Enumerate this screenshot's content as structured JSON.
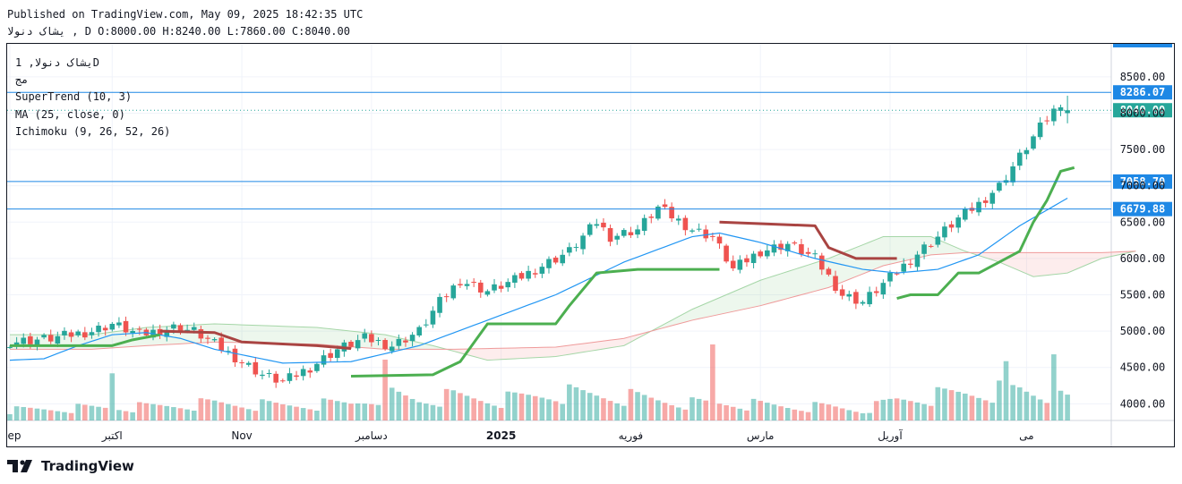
{
  "header": {
    "published": "Published on TradingView.com, May 09, 2025 18:42:35 UTC",
    "ohlc_line": "یشاک دنولا , D O:8000.00 H:8240.00 L:7860.00 C:8040.00"
  },
  "legend": {
    "symbol_line": "یشاک دنولا, 1D",
    "exchange": "مج",
    "indicators": [
      "SuperTrend (10, 3)",
      "MA (25, close, 0)",
      "Ichimoku (9, 26, 52, 26)"
    ]
  },
  "branding": {
    "logo_text": "TradingView"
  },
  "colors": {
    "up": "#26a69a",
    "down": "#ef5350",
    "ma": "#2196f3",
    "supertrend_up": "#4caf50",
    "supertrend_down": "#a94442",
    "hline": "#1e88e5",
    "last_price_tag": "#26a69a"
  },
  "chart_data": {
    "type": "candlestick",
    "title": "",
    "interval": "1D",
    "y_axis": {
      "ticks": [
        4000,
        4500,
        5000,
        5500,
        6000,
        6500,
        7000,
        7500,
        8000,
        8500
      ],
      "tick_labels": [
        "4000.00",
        "4500.00",
        "5000.00",
        "5500.00",
        "6000.00",
        "6500.00",
        "7000.00",
        "7500.00",
        "8000.00",
        "8500.00"
      ],
      "ylim": [
        3770,
        8880
      ]
    },
    "x_axis": {
      "tick_labels": [
        "ep",
        "اکتبر",
        "Nov",
        "دسامبر",
        "2025",
        "فوریه",
        "مارس",
        "آوریل",
        "می"
      ],
      "tick_candle_index": [
        0,
        15,
        34,
        53,
        72,
        91,
        110,
        129,
        149
      ],
      "candle_count": 156
    },
    "price_tags": [
      {
        "label": "8286.07",
        "value": 8286.07,
        "kind": "line"
      },
      {
        "label": "8040.00",
        "value": 8040,
        "kind": "last"
      },
      {
        "label": "7058.70",
        "value": 7058.7,
        "kind": "line"
      },
      {
        "label": "6679.88",
        "value": 6679.88,
        "kind": "line"
      }
    ],
    "last_ohlc": {
      "open": 8000,
      "high": 8240,
      "low": 7860,
      "close": 8040
    },
    "price_anchors": [
      [
        0,
        4850
      ],
      [
        6,
        4900
      ],
      [
        12,
        5000
      ],
      [
        15,
        5100
      ],
      [
        19,
        4950
      ],
      [
        24,
        5050
      ],
      [
        27,
        5000
      ],
      [
        32,
        4700
      ],
      [
        37,
        4400
      ],
      [
        40,
        4300
      ],
      [
        44,
        4500
      ],
      [
        48,
        4750
      ],
      [
        52,
        4900
      ],
      [
        56,
        4800
      ],
      [
        60,
        5000
      ],
      [
        63,
        5400
      ],
      [
        66,
        5700
      ],
      [
        70,
        5550
      ],
      [
        74,
        5700
      ],
      [
        78,
        5900
      ],
      [
        82,
        6100
      ],
      [
        86,
        6500
      ],
      [
        88,
        6300
      ],
      [
        92,
        6400
      ],
      [
        95,
        6700
      ],
      [
        100,
        6400
      ],
      [
        103,
        6300
      ],
      [
        106,
        5850
      ],
      [
        110,
        6100
      ],
      [
        114,
        6200
      ],
      [
        118,
        6000
      ],
      [
        122,
        5500
      ],
      [
        125,
        5400
      ],
      [
        128,
        5650
      ],
      [
        131,
        5900
      ],
      [
        134,
        6150
      ],
      [
        136,
        6300
      ],
      [
        139,
        6550
      ],
      [
        142,
        6750
      ],
      [
        145,
        7000
      ],
      [
        148,
        7400
      ],
      [
        151,
        7800
      ],
      [
        154,
        8150
      ],
      [
        155,
        8040
      ]
    ],
    "ma25_anchors": [
      [
        0,
        4600
      ],
      [
        5,
        4620
      ],
      [
        10,
        4800
      ],
      [
        15,
        4950
      ],
      [
        20,
        4980
      ],
      [
        25,
        4900
      ],
      [
        30,
        4750
      ],
      [
        40,
        4560
      ],
      [
        50,
        4580
      ],
      [
        60,
        4800
      ],
      [
        70,
        5150
      ],
      [
        80,
        5500
      ],
      [
        90,
        5950
      ],
      [
        100,
        6300
      ],
      [
        104,
        6350
      ],
      [
        110,
        6220
      ],
      [
        118,
        6000
      ],
      [
        125,
        5850
      ],
      [
        130,
        5800
      ],
      [
        136,
        5850
      ],
      [
        142,
        6050
      ],
      [
        148,
        6450
      ],
      [
        155,
        6830
      ]
    ],
    "supertrend": [
      {
        "trend": "up",
        "points": [
          [
            0,
            4800
          ],
          [
            15,
            4800
          ],
          [
            18,
            4880
          ],
          [
            22,
            4950
          ]
        ]
      },
      {
        "trend": "down",
        "points": [
          [
            22,
            5000
          ],
          [
            30,
            4980
          ],
          [
            34,
            4850
          ],
          [
            45,
            4800
          ],
          [
            50,
            4760
          ]
        ]
      },
      {
        "trend": "up",
        "points": [
          [
            50,
            4380
          ],
          [
            62,
            4400
          ],
          [
            66,
            4580
          ],
          [
            70,
            5100
          ],
          [
            80,
            5100
          ],
          [
            82,
            5350
          ],
          [
            86,
            5800
          ],
          [
            92,
            5850
          ],
          [
            100,
            5850
          ],
          [
            104,
            5850
          ]
        ]
      },
      {
        "trend": "down",
        "points": [
          [
            104,
            6500
          ],
          [
            118,
            6450
          ],
          [
            120,
            6150
          ],
          [
            124,
            6000
          ],
          [
            130,
            6000
          ]
        ]
      },
      {
        "trend": "up",
        "points": [
          [
            130,
            5450
          ],
          [
            132,
            5500
          ],
          [
            136,
            5500
          ],
          [
            139,
            5800
          ],
          [
            142,
            5800
          ],
          [
            148,
            6100
          ],
          [
            150,
            6500
          ],
          [
            152,
            6800
          ],
          [
            154,
            7200
          ],
          [
            156,
            7250
          ]
        ]
      }
    ],
    "cloud_span_a": [
      [
        0,
        4950
      ],
      [
        12,
        4950
      ],
      [
        20,
        5050
      ],
      [
        30,
        5100
      ],
      [
        45,
        5050
      ],
      [
        55,
        4950
      ],
      [
        62,
        4800
      ],
      [
        70,
        4600
      ],
      [
        80,
        4650
      ],
      [
        90,
        4800
      ],
      [
        100,
        5300
      ],
      [
        110,
        5700
      ],
      [
        120,
        6000
      ],
      [
        128,
        6300
      ],
      [
        135,
        6300
      ],
      [
        140,
        6100
      ],
      [
        145,
        5950
      ],
      [
        150,
        5750
      ],
      [
        155,
        5800
      ],
      [
        160,
        6000
      ],
      [
        165,
        6100
      ]
    ],
    "cloud_span_b": [
      [
        0,
        4750
      ],
      [
        12,
        4750
      ],
      [
        20,
        4800
      ],
      [
        30,
        4850
      ],
      [
        45,
        4820
      ],
      [
        55,
        4750
      ],
      [
        65,
        4750
      ],
      [
        80,
        4780
      ],
      [
        90,
        4900
      ],
      [
        100,
        5150
      ],
      [
        110,
        5350
      ],
      [
        120,
        5600
      ],
      [
        128,
        5900
      ],
      [
        135,
        6050
      ],
      [
        140,
        6080
      ],
      [
        150,
        6080
      ],
      [
        160,
        6080
      ],
      [
        165,
        6100
      ]
    ],
    "volume_anchors": [
      [
        0,
        0.15
      ],
      [
        10,
        0.18
      ],
      [
        20,
        0.2
      ],
      [
        30,
        0.25
      ],
      [
        40,
        0.22
      ],
      [
        50,
        0.25
      ],
      [
        55,
        0.4
      ],
      [
        60,
        0.3
      ],
      [
        65,
        0.35
      ],
      [
        72,
        0.3
      ],
      [
        80,
        0.4
      ],
      [
        90,
        0.35
      ],
      [
        100,
        0.25
      ],
      [
        106,
        0.25
      ],
      [
        115,
        0.2
      ],
      [
        120,
        0.2
      ],
      [
        125,
        0.15
      ],
      [
        130,
        0.3
      ],
      [
        140,
        0.4
      ],
      [
        148,
        0.45
      ],
      [
        155,
        0.3
      ]
    ],
    "volume_spikes": [
      {
        "candle": 15,
        "relative": 0.62
      },
      {
        "candle": 55,
        "relative": 0.8
      },
      {
        "candle": 103,
        "relative": 1.0
      },
      {
        "candle": 146,
        "relative": 0.78
      },
      {
        "candle": 153,
        "relative": 0.87
      }
    ],
    "grid": true,
    "legend_position": "top-left"
  }
}
